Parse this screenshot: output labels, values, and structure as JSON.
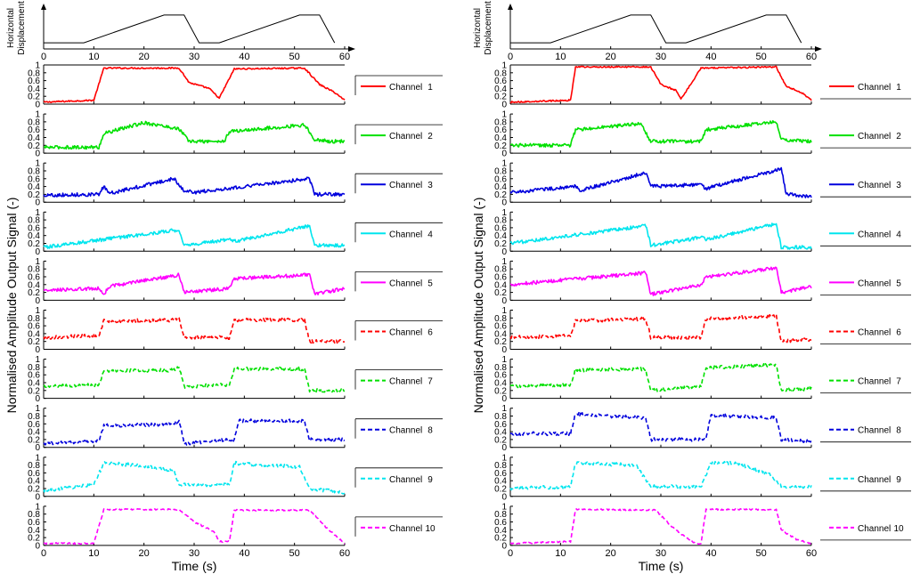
{
  "chart_data": [
    {
      "type": "line",
      "panel": "left",
      "ylabel": "Normalised Amplitude Output Signal (-)",
      "xlabel": "Time (s)",
      "xlim": [
        0,
        60
      ],
      "x_ticks": [
        "0",
        "10",
        "20",
        "30",
        "40",
        "50",
        "60"
      ],
      "y_ticks": [
        "0",
        "0.2",
        "0.4",
        "0.6",
        "0.8",
        "1"
      ],
      "top_ylabel_1": "Horizontal",
      "top_ylabel_2": "Displacement",
      "displacement": {
        "t": [
          0,
          8,
          24,
          28,
          31,
          35,
          51,
          55,
          58
        ],
        "y": [
          0.1,
          0.1,
          0.9,
          0.9,
          0.1,
          0.1,
          0.9,
          0.9,
          0.1
        ]
      },
      "series": [
        {
          "name": "Channel 1",
          "label": "Channel",
          "num": "1",
          "color": "#ff0000",
          "dashed": false,
          "t": [
            0,
            10,
            12,
            27,
            29,
            33,
            35,
            38,
            52,
            55,
            58,
            60
          ],
          "y": [
            0.05,
            0.1,
            0.92,
            0.92,
            0.55,
            0.4,
            0.15,
            0.9,
            0.92,
            0.5,
            0.3,
            0.1
          ]
        },
        {
          "name": "Channel 2",
          "label": "Channel",
          "num": "2",
          "color": "#00e000",
          "dashed": false,
          "t": [
            0,
            11,
            12,
            20,
            27,
            29,
            36,
            37,
            52,
            54,
            57,
            60
          ],
          "y": [
            0.15,
            0.15,
            0.5,
            0.78,
            0.62,
            0.3,
            0.3,
            0.55,
            0.72,
            0.35,
            0.3,
            0.3
          ]
        },
        {
          "name": "Channel 3",
          "label": "Channel",
          "num": "3",
          "color": "#0000dd",
          "dashed": false,
          "t": [
            0,
            11,
            12,
            13,
            26,
            28,
            30,
            53,
            54,
            60
          ],
          "y": [
            0.18,
            0.2,
            0.4,
            0.22,
            0.6,
            0.3,
            0.25,
            0.6,
            0.2,
            0.2
          ]
        },
        {
          "name": "Channel 4",
          "label": "Channel",
          "num": "4",
          "color": "#00e5ee",
          "dashed": false,
          "t": [
            0,
            27,
            28,
            37,
            38,
            53,
            54,
            60
          ],
          "y": [
            0.1,
            0.55,
            0.15,
            0.3,
            0.25,
            0.65,
            0.15,
            0.15
          ]
        },
        {
          "name": "Channel 5",
          "label": "Channel",
          "num": "5",
          "color": "#ff00ff",
          "dashed": false,
          "t": [
            0,
            11,
            12,
            13,
            27,
            28,
            37,
            38,
            53,
            54,
            60
          ],
          "y": [
            0.25,
            0.3,
            0.15,
            0.35,
            0.65,
            0.2,
            0.3,
            0.55,
            0.65,
            0.15,
            0.3
          ]
        },
        {
          "name": "Channel 6",
          "label": "Channel",
          "num": "6",
          "color": "#ff0000",
          "dashed": true,
          "t": [
            0,
            11,
            12,
            26,
            27,
            28,
            37,
            38,
            52,
            53,
            60
          ],
          "y": [
            0.3,
            0.35,
            0.72,
            0.75,
            0.82,
            0.3,
            0.3,
            0.75,
            0.75,
            0.2,
            0.2
          ]
        },
        {
          "name": "Channel 7",
          "label": "Channel",
          "num": "7",
          "color": "#00e000",
          "dashed": true,
          "t": [
            0,
            11,
            12,
            26,
            27,
            28,
            37,
            38,
            52,
            53,
            60
          ],
          "y": [
            0.3,
            0.35,
            0.7,
            0.72,
            0.8,
            0.3,
            0.35,
            0.75,
            0.75,
            0.2,
            0.2
          ]
        },
        {
          "name": "Channel 8",
          "label": "Channel",
          "num": "8",
          "color": "#0000dd",
          "dashed": true,
          "t": [
            0,
            11,
            12,
            26,
            27,
            28,
            38,
            39,
            52,
            53,
            60
          ],
          "y": [
            0.1,
            0.15,
            0.55,
            0.6,
            0.7,
            0.1,
            0.2,
            0.68,
            0.68,
            0.2,
            0.2
          ]
        },
        {
          "name": "Channel 9",
          "label": "Channel",
          "num": "9",
          "color": "#00e5ee",
          "dashed": true,
          "t": [
            0,
            10,
            12,
            18,
            26,
            27,
            37,
            38,
            51,
            53,
            60
          ],
          "y": [
            0.15,
            0.3,
            0.85,
            0.8,
            0.65,
            0.3,
            0.3,
            0.85,
            0.75,
            0.2,
            0.1
          ]
        },
        {
          "name": "Channel 10",
          "label": "Channel",
          "num": "10",
          "color": "#ff00ff",
          "dashed": true,
          "t": [
            0,
            10,
            12,
            27,
            30,
            34,
            35,
            37,
            38,
            53,
            56,
            60
          ],
          "y": [
            0.05,
            0.05,
            0.92,
            0.92,
            0.6,
            0.35,
            0.1,
            0.1,
            0.9,
            0.9,
            0.5,
            0.05
          ]
        }
      ]
    },
    {
      "type": "line",
      "panel": "right",
      "ylabel": "Normalised Amplitude Output Signal (-)",
      "xlabel": "Time (s)",
      "xlim": [
        0,
        60
      ],
      "x_ticks": [
        "0",
        "10",
        "20",
        "30",
        "40",
        "50",
        "60"
      ],
      "y_ticks": [
        "0",
        "0.2",
        "0.4",
        "0.6",
        "0.8",
        "1"
      ],
      "top_ylabel_1": "Horizontal",
      "top_ylabel_2": "Displacement",
      "displacement": {
        "t": [
          0,
          8,
          24,
          28,
          31,
          35,
          51,
          55,
          58
        ],
        "y": [
          0.1,
          0.1,
          0.9,
          0.9,
          0.1,
          0.1,
          0.9,
          0.9,
          0.1
        ]
      },
      "series": [
        {
          "name": "Channel 1",
          "label": "Channel",
          "num": "1",
          "color": "#ff0000",
          "dashed": false,
          "t": [
            0,
            12,
            13,
            28,
            30,
            33,
            34,
            38,
            53,
            55,
            58,
            60
          ],
          "y": [
            0.05,
            0.1,
            0.95,
            0.95,
            0.5,
            0.35,
            0.12,
            0.92,
            0.95,
            0.45,
            0.3,
            0.1
          ]
        },
        {
          "name": "Channel 2",
          "label": "Channel",
          "num": "2",
          "color": "#00e000",
          "dashed": false,
          "t": [
            0,
            12,
            13,
            26,
            28,
            38,
            39,
            53,
            54,
            60
          ],
          "y": [
            0.2,
            0.2,
            0.6,
            0.75,
            0.3,
            0.3,
            0.6,
            0.8,
            0.35,
            0.3
          ]
        },
        {
          "name": "Channel 3",
          "label": "Channel",
          "num": "3",
          "color": "#0000dd",
          "dashed": false,
          "t": [
            0,
            13,
            14,
            27,
            28,
            38,
            39,
            54,
            55,
            60
          ],
          "y": [
            0.25,
            0.4,
            0.3,
            0.75,
            0.4,
            0.45,
            0.35,
            0.85,
            0.2,
            0.15
          ]
        },
        {
          "name": "Channel 4",
          "label": "Channel",
          "num": "4",
          "color": "#00e5ee",
          "dashed": false,
          "t": [
            0,
            27,
            28,
            38,
            39,
            53,
            54,
            60
          ],
          "y": [
            0.2,
            0.65,
            0.15,
            0.35,
            0.3,
            0.7,
            0.1,
            0.1
          ]
        },
        {
          "name": "Channel 5",
          "label": "Channel",
          "num": "5",
          "color": "#ff00ff",
          "dashed": false,
          "t": [
            0,
            27,
            28,
            38,
            39,
            53,
            54,
            60
          ],
          "y": [
            0.4,
            0.7,
            0.15,
            0.4,
            0.6,
            0.82,
            0.2,
            0.35
          ]
        },
        {
          "name": "Channel 6",
          "label": "Channel",
          "num": "6",
          "color": "#ff0000",
          "dashed": true,
          "t": [
            0,
            12,
            13,
            27,
            28,
            38,
            39,
            53,
            54,
            60
          ],
          "y": [
            0.3,
            0.35,
            0.72,
            0.78,
            0.3,
            0.3,
            0.78,
            0.85,
            0.2,
            0.25
          ]
        },
        {
          "name": "Channel 7",
          "label": "Channel",
          "num": "7",
          "color": "#00e000",
          "dashed": true,
          "t": [
            0,
            12,
            13,
            27,
            28,
            38,
            39,
            53,
            54,
            60
          ],
          "y": [
            0.3,
            0.35,
            0.72,
            0.75,
            0.2,
            0.3,
            0.78,
            0.85,
            0.2,
            0.25
          ]
        },
        {
          "name": "Channel 8",
          "label": "Channel",
          "num": "8",
          "color": "#0000dd",
          "dashed": true,
          "t": [
            0,
            12,
            13,
            27,
            28,
            39,
            40,
            53,
            54,
            60
          ],
          "y": [
            0.35,
            0.35,
            0.85,
            0.75,
            0.2,
            0.2,
            0.82,
            0.75,
            0.2,
            0.15
          ]
        },
        {
          "name": "Channel 9",
          "label": "Channel",
          "num": "9",
          "color": "#00e5ee",
          "dashed": true,
          "t": [
            0,
            12,
            13,
            25,
            28,
            38,
            40,
            45,
            52,
            54,
            60
          ],
          "y": [
            0.2,
            0.25,
            0.85,
            0.8,
            0.25,
            0.25,
            0.85,
            0.85,
            0.55,
            0.25,
            0.25
          ]
        },
        {
          "name": "Channel 10",
          "label": "Channel",
          "num": "10",
          "color": "#ff00ff",
          "dashed": true,
          "t": [
            0,
            12,
            13,
            29,
            32,
            35,
            37,
            38,
            39,
            53,
            54,
            57,
            60
          ],
          "y": [
            0.05,
            0.1,
            0.92,
            0.9,
            0.5,
            0.2,
            0.05,
            0.05,
            0.92,
            0.92,
            0.4,
            0.15,
            0.05
          ]
        }
      ]
    }
  ]
}
